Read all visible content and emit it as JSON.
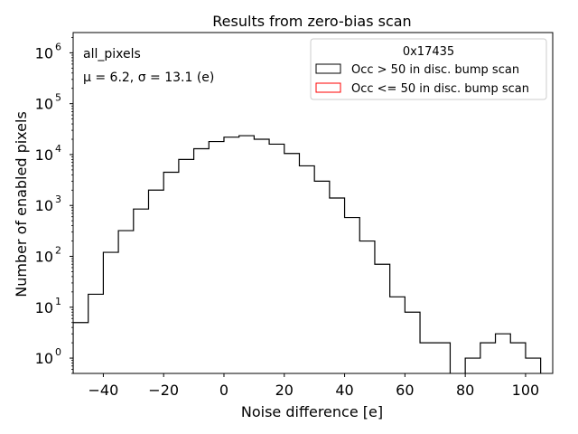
{
  "chart_data": {
    "type": "histogram",
    "title": "Results from zero-bias scan",
    "xlabel": "Noise difference [e]",
    "ylabel": "Number of enabled pixels",
    "xlim": [
      -50,
      109
    ],
    "ylim": [
      0.5,
      2500000
    ],
    "yscale": "log",
    "x_ticks": [
      -40,
      -20,
      0,
      20,
      40,
      60,
      80,
      100
    ],
    "x_tick_labels": [
      "−40",
      "−20",
      "0",
      "20",
      "40",
      "60",
      "80",
      "100"
    ],
    "y_ticks": [
      1,
      10,
      100,
      1000,
      10000,
      100000,
      1000000
    ],
    "y_tick_bases": [
      "10",
      "10",
      "10",
      "10",
      "10",
      "10",
      "10"
    ],
    "y_tick_exponents": [
      "0",
      "1",
      "2",
      "3",
      "4",
      "5",
      "6"
    ],
    "annotations": {
      "group": "all_pixels",
      "stats": "μ = 6.2, σ = 13.1 (e)"
    },
    "legend": {
      "title": "0x17435",
      "placement": "top-right",
      "entries": [
        {
          "label": "Occ > 50 in disc. bump scan",
          "color": "#000000"
        },
        {
          "label": "Occ <= 50 in disc. bump scan",
          "color": "#ff0000"
        }
      ]
    },
    "bin_edges": [
      -50,
      -45,
      -40,
      -35,
      -30,
      -25,
      -20,
      -15,
      -10,
      -5,
      0,
      5,
      10,
      15,
      20,
      25,
      30,
      35,
      40,
      45,
      50,
      55,
      60,
      65,
      70,
      75,
      80,
      85,
      90,
      95,
      100,
      105
    ],
    "series": [
      {
        "name": "Occ > 50 in disc. bump scan",
        "color": "#000000",
        "counts": [
          5,
          18,
          120,
          320,
          850,
          2000,
          4500,
          8000,
          13000,
          18000,
          22000,
          23500,
          20000,
          16000,
          10500,
          6000,
          3000,
          1400,
          580,
          200,
          70,
          16,
          8,
          2,
          2,
          0,
          1,
          2,
          3,
          2,
          1
        ]
      },
      {
        "name": "Occ <= 50 in disc. bump scan",
        "color": "#ff0000",
        "counts": []
      }
    ]
  }
}
